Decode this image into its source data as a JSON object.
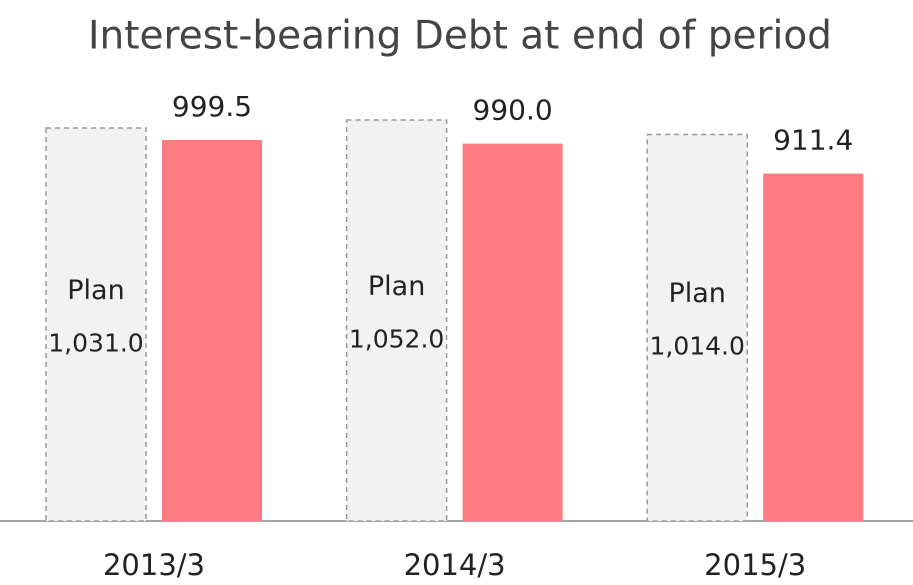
{
  "chart_data": {
    "type": "bar",
    "title": "Interest-bearing Debt at end of period",
    "categories": [
      "2013/3",
      "2014/3",
      "2015/3"
    ],
    "series": [
      {
        "name": "Plan",
        "color": "#f2f2f2",
        "values": [
          1031.0,
          1052.0,
          1014.0
        ],
        "value_labels": [
          "1,031.0",
          "1,052.0",
          "1,014.0"
        ]
      },
      {
        "color": "#ff7b82",
        "values": [
          999.5,
          990.0,
          911.4
        ],
        "value_labels": [
          "999.5",
          "990.0",
          "911.4"
        ]
      }
    ]
  }
}
